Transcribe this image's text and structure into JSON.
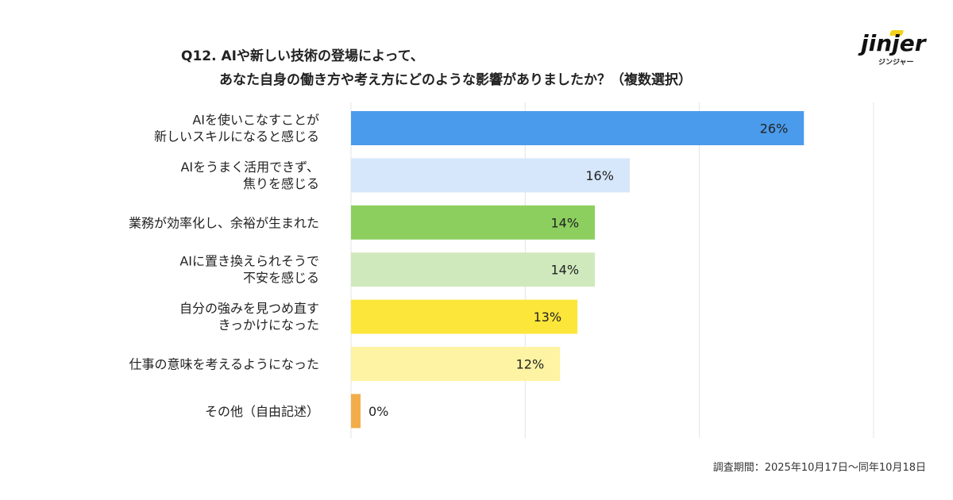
{
  "title": {
    "line1": "Q12. AIや新しい技術の登場によって、",
    "line2": "あなた自身の働き方や考え方にどのような影響がありましたか？（複数選択）"
  },
  "logo": {
    "word": "jinjer",
    "sub": "ジンジャー",
    "accent_color": "#f2d21a"
  },
  "footer": {
    "period": "調査期間：2025年10月17日〜同年10月18日"
  },
  "chart_data": {
    "type": "bar",
    "orientation": "horizontal",
    "categories": [
      [
        "AIを使いこなすことが",
        "新しいスキルになると感じる"
      ],
      [
        "AIをうまく活用できず、",
        "焦りを感じる"
      ],
      [
        "業務が効率化し、余裕が生まれた"
      ],
      [
        "AIに置き換えられそうで",
        "不安を感じる"
      ],
      [
        "自分の強みを見つめ直す",
        "きっかけになった"
      ],
      [
        "仕事の意味を考えるようになった"
      ],
      [
        "その他（自由記述）"
      ]
    ],
    "values": [
      26,
      16,
      14,
      14,
      13,
      12,
      0
    ],
    "labels": [
      "26%",
      "16%",
      "14%",
      "14%",
      "13%",
      "12%",
      "0%"
    ],
    "colors": [
      "#4a9bec",
      "#d6e7fb",
      "#8ccf5f",
      "#cfe9bd",
      "#fde63a",
      "#fdf3a3",
      "#f2ad4a"
    ],
    "xlim": [
      0,
      30
    ],
    "grid": true,
    "legend": "none"
  }
}
